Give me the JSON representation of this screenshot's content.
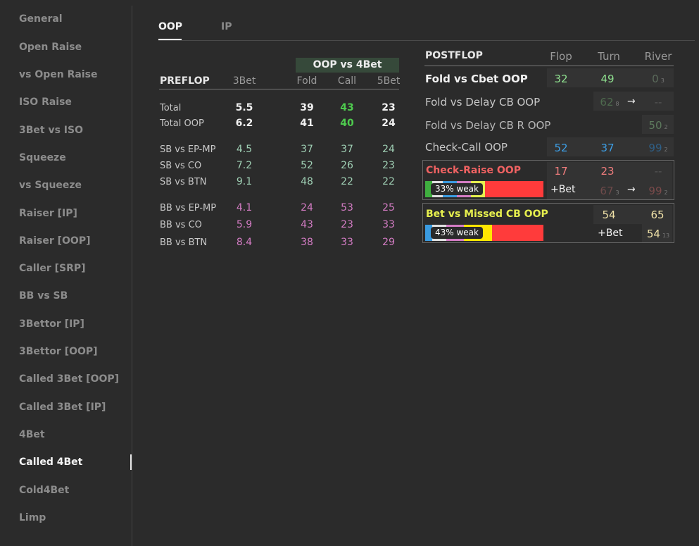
{
  "sidebar": {
    "items": [
      "General",
      "Open Raise",
      "vs Open Raise",
      "ISO Raise",
      "3Bet vs ISO",
      "Squeeze",
      "vs Squeeze",
      "Raiser [IP]",
      "Raiser [OOP]",
      "Caller [SRP]",
      "BB vs SB",
      "3Bettor [IP]",
      "3Bettor [OOP]",
      "Called 3Bet [OOP]",
      "Called 3Bet [IP]",
      "4Bet",
      "Called 4Bet",
      "Cold4Bet",
      "Limp"
    ],
    "active": "Called 4Bet"
  },
  "tabs": {
    "oop": "OOP",
    "ip": "IP",
    "active": "OOP"
  },
  "preflop": {
    "group_header": "OOP vs 4Bet",
    "title": "PREFLOP",
    "col_3bet": "3Bet",
    "col_fold": "Fold",
    "col_call": "Call",
    "col_5bet": "5Bet",
    "rows": [
      {
        "label": "Total",
        "v3bet": "5.5",
        "fold": "39",
        "call": "43",
        "fivebet": "23"
      },
      {
        "label": "Total OOP",
        "v3bet": "6.2",
        "fold": "41",
        "call": "40",
        "fivebet": "24"
      },
      {
        "label": "SB vs EP-MP",
        "v3bet": "4.5",
        "fold": "37",
        "call": "37",
        "fivebet": "24"
      },
      {
        "label": "SB vs CO",
        "v3bet": "7.2",
        "fold": "52",
        "call": "26",
        "fivebet": "23"
      },
      {
        "label": "SB vs BTN",
        "v3bet": "9.1",
        "fold": "48",
        "call": "22",
        "fivebet": "22"
      },
      {
        "label": "BB vs EP-MP",
        "v3bet": "4.1",
        "fold": "24",
        "call": "53",
        "fivebet": "25"
      },
      {
        "label": "BB vs CO",
        "v3bet": "5.9",
        "fold": "43",
        "call": "23",
        "fivebet": "33"
      },
      {
        "label": "BB vs BTN",
        "v3bet": "8.4",
        "fold": "38",
        "call": "33",
        "fivebet": "29"
      }
    ]
  },
  "postflop": {
    "title": "POSTFLOP",
    "col_flop": "Flop",
    "col_turn": "Turn",
    "col_river": "River",
    "fold_cbet": {
      "label": "Fold vs Cbet OOP",
      "flop": "32",
      "turn": "49",
      "river": "0",
      "river_n": "3"
    },
    "fold_delay": {
      "label": "Fold vs Delay CB OOP",
      "turn": "62",
      "turn_n": "8",
      "arrow": "→",
      "river": "--"
    },
    "fold_delay_r": {
      "label": "Fold vs Delay CB R OOP",
      "river": "50",
      "river_n": "2"
    },
    "check_call": {
      "label": "Check-Call OOP",
      "flop": "52",
      "turn": "37",
      "river": "99",
      "river_n": "2"
    },
    "check_raise": {
      "label": "Check-Raise OOP",
      "flop": "17",
      "turn": "23",
      "river": "--",
      "bar_text": "33% weak",
      "weak_pct": 33,
      "plus_bet": "+Bet",
      "turn2": "67",
      "turn2_n": "3",
      "arrow": "→",
      "river2": "99",
      "river2_n": "2"
    },
    "bet_missed": {
      "label": "Bet vs Missed CB OOP",
      "turn": "54",
      "river": "65",
      "bar_text": "43% weak",
      "weak_pct": 43,
      "plus_bet": "+Bet",
      "river2": "54",
      "river2_n": "13"
    }
  },
  "colors": {
    "green": "#7ed57e",
    "bright_green": "#4ecb4e",
    "teal": "#9fcfb4",
    "pink": "#d47cc4",
    "blue": "#3a9be0",
    "red": "#f06262",
    "yellow": "#e6ef4e",
    "cream": "#f0e2a8",
    "bar_red": "#ff3b3b"
  }
}
